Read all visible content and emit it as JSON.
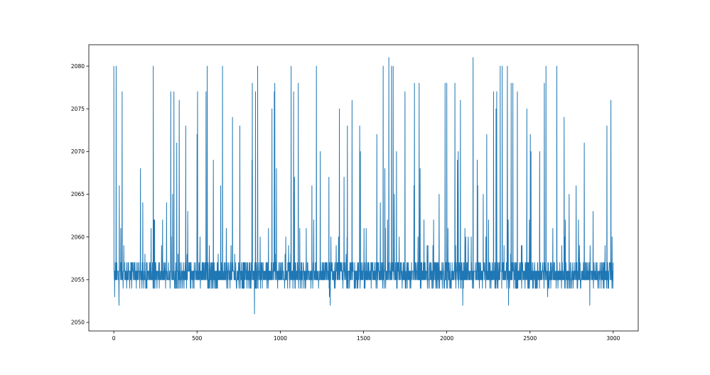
{
  "chart_data": {
    "type": "line",
    "title": "",
    "xlabel": "",
    "ylabel": "",
    "xlim": [
      -150,
      3150
    ],
    "ylim": [
      2049,
      2082.5
    ],
    "x_ticks": [
      0,
      500,
      1000,
      1500,
      2000,
      2500,
      3000
    ],
    "y_ticks": [
      2050,
      2055,
      2060,
      2065,
      2070,
      2075,
      2080
    ],
    "grid": false,
    "legend": "none",
    "n_points": 3001,
    "baseline_range": [
      2054,
      2057
    ],
    "series": [
      {
        "color": "#1f77b4",
        "spikes": [
          [
            0,
            2080
          ],
          [
            14,
            2080
          ],
          [
            33,
            2066
          ],
          [
            50,
            2077
          ],
          [
            160,
            2068
          ],
          [
            174,
            2064
          ],
          [
            237,
            2080
          ],
          [
            241,
            2062
          ],
          [
            317,
            2064
          ],
          [
            342,
            2077
          ],
          [
            353,
            2065
          ],
          [
            361,
            2077
          ],
          [
            378,
            2071
          ],
          [
            393,
            2076
          ],
          [
            432,
            2073
          ],
          [
            444,
            2063
          ],
          [
            500,
            2072
          ],
          [
            503,
            2077
          ],
          [
            554,
            2077
          ],
          [
            561,
            2080
          ],
          [
            598,
            2069
          ],
          [
            642,
            2066
          ],
          [
            653,
            2080
          ],
          [
            713,
            2074
          ],
          [
            757,
            2073
          ],
          [
            830,
            2069
          ],
          [
            832,
            2078
          ],
          [
            845,
            2080
          ],
          [
            851,
            2077
          ],
          [
            864,
            2080
          ],
          [
            950,
            2075
          ],
          [
            964,
            2077
          ],
          [
            967,
            2078
          ],
          [
            977,
            2068
          ],
          [
            1065,
            2080
          ],
          [
            1080,
            2077
          ],
          [
            1085,
            2067
          ],
          [
            1108,
            2078
          ],
          [
            1190,
            2066
          ],
          [
            1217,
            2080
          ],
          [
            1240,
            2070
          ],
          [
            1292,
            2067
          ],
          [
            1355,
            2075
          ],
          [
            1383,
            2067
          ],
          [
            1403,
            2073
          ],
          [
            1431,
            2076
          ],
          [
            1477,
            2073
          ],
          [
            1481,
            2070
          ],
          [
            1580,
            2072
          ],
          [
            1601,
            2064
          ],
          [
            1618,
            2080
          ],
          [
            1628,
            2068
          ],
          [
            1644,
            2062
          ],
          [
            1652,
            2081
          ],
          [
            1668,
            2080
          ],
          [
            1678,
            2080
          ],
          [
            1685,
            2065
          ],
          [
            1698,
            2070
          ],
          [
            1749,
            2077
          ],
          [
            1803,
            2066
          ],
          [
            1806,
            2078
          ],
          [
            1834,
            2078
          ],
          [
            1840,
            2068
          ],
          [
            1887,
            2059
          ],
          [
            1954,
            2065
          ],
          [
            1990,
            2078
          ],
          [
            2000,
            2078
          ],
          [
            2049,
            2078
          ],
          [
            2064,
            2069
          ],
          [
            2069,
            2070
          ],
          [
            2082,
            2076
          ],
          [
            2096,
            2073
          ],
          [
            2158,
            2081
          ],
          [
            2183,
            2069
          ],
          [
            2186,
            2066
          ],
          [
            2219,
            2065
          ],
          [
            2240,
            2072
          ],
          [
            2281,
            2077
          ],
          [
            2296,
            2075
          ],
          [
            2300,
            2077
          ],
          [
            2321,
            2080
          ],
          [
            2333,
            2080
          ],
          [
            2363,
            2066
          ],
          [
            2364,
            2080
          ],
          [
            2387,
            2078
          ],
          [
            2397,
            2078
          ],
          [
            2424,
            2077
          ],
          [
            2481,
            2075
          ],
          [
            2502,
            2072
          ],
          [
            2506,
            2070
          ],
          [
            2558,
            2070
          ],
          [
            2586,
            2078
          ],
          [
            2596,
            2080
          ],
          [
            2661,
            2080
          ],
          [
            2705,
            2074
          ],
          [
            2735,
            2065
          ],
          [
            2777,
            2066
          ],
          [
            2826,
            2071
          ],
          [
            2879,
            2063
          ],
          [
            2962,
            2073
          ],
          [
            2986,
            2076
          ]
        ],
        "dips": [
          [
            5,
            2053
          ],
          [
            31,
            2052
          ],
          [
            845,
            2051
          ],
          [
            1295,
            2053
          ],
          [
            1300,
            2052
          ],
          [
            2096,
            2052
          ],
          [
            2371,
            2052
          ],
          [
            2606,
            2053
          ],
          [
            2859,
            2052
          ]
        ]
      }
    ]
  }
}
